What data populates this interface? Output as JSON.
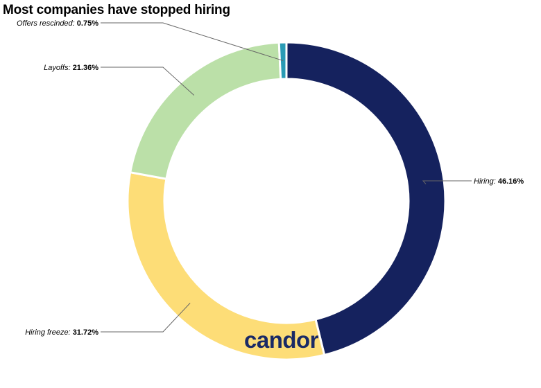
{
  "chart_data": {
    "type": "pie",
    "title": "Most companies have stopped hiring",
    "categories": [
      "Hiring",
      "Hiring freeze",
      "Layoffs",
      "Offers rescinded"
    ],
    "values": [
      46.16,
      31.72,
      21.36,
      0.75
    ],
    "value_labels": [
      "46.16%",
      "31.72%",
      "21.36%",
      "0.75%"
    ],
    "colors": [
      "#15225e",
      "#fddd77",
      "#bbe0a8",
      "#2a9bb5"
    ],
    "legend": "none"
  },
  "brand": {
    "logo_text": "candor"
  }
}
